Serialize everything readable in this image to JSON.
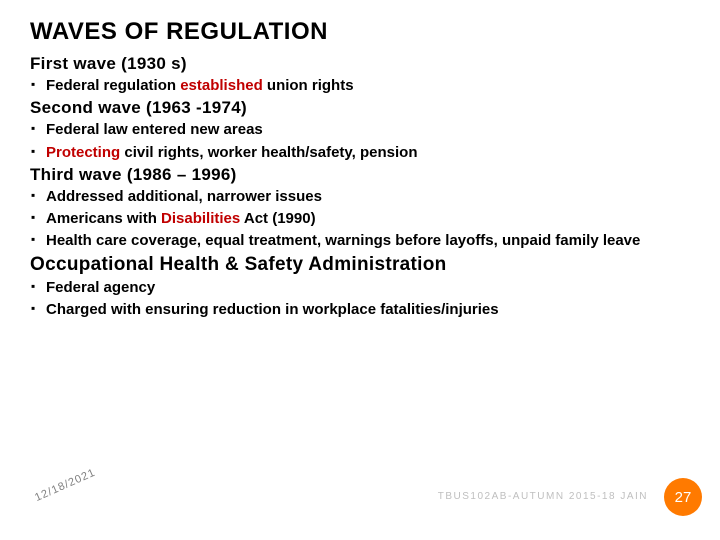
{
  "title": "WAVES OF REGULATION",
  "waves": [
    {
      "heading": "First wave (1930 s)",
      "bullets": [
        {
          "pre": "Federal regulation ",
          "kw": "established",
          "post": " union rights"
        }
      ]
    },
    {
      "heading": "Second wave (1963 -1974)",
      "bullets": [
        {
          "pre": "Federal law entered new areas",
          "kw": "",
          "post": ""
        },
        {
          "pre": "",
          "kw": "Protecting",
          "post": " civil rights, worker health/safety, pension"
        }
      ]
    },
    {
      "heading": "Third wave (1986 – 1996)",
      "bullets": [
        {
          "pre": "Addressed additional, narrower issues",
          "kw": "",
          "post": ""
        },
        {
          "pre": "Americans with ",
          "kw": "Disabilities",
          "post": " Act (1990)"
        },
        {
          "pre": "Health care coverage, equal treatment, warnings before layoffs, unpaid family leave",
          "kw": "",
          "post": ""
        }
      ]
    }
  ],
  "osha": {
    "heading": "Occupational Health & Safety Administration",
    "bullets": [
      {
        "pre": "Federal agency",
        "kw": "",
        "post": ""
      },
      {
        "pre": "Charged with ensuring reduction in workplace fatalities/injuries",
        "kw": "",
        "post": ""
      }
    ]
  },
  "footer": {
    "date": "12/18/2021",
    "course": "TBUS102AB-AUTUMN 2015-18 JAIN",
    "page": "27"
  },
  "colors": {
    "keyword": "#c00000",
    "badge_bg": "#ff7a00",
    "badge_fg": "#ffffff",
    "footer_gray": "#bfbfbf",
    "date_gray": "#7f7f7f"
  }
}
